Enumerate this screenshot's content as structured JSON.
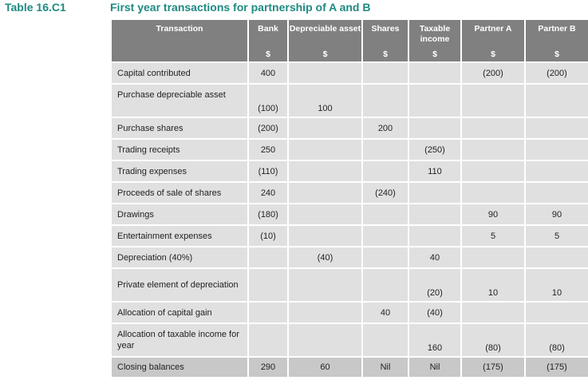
{
  "table": {
    "label": "Table 16.C1",
    "title": "First year transactions for partnership of A and B",
    "columns": [
      {
        "label": "Transaction",
        "unit": ""
      },
      {
        "label": "Bank",
        "unit": "$"
      },
      {
        "label": "Depreciable asset",
        "unit": "$"
      },
      {
        "label": "Shares",
        "unit": "$"
      },
      {
        "label": "Taxable income",
        "unit": "$"
      },
      {
        "label": "Partner A",
        "unit": "$"
      },
      {
        "label": "Partner B",
        "unit": "$"
      }
    ],
    "rows": [
      {
        "transaction": "Capital contributed",
        "bank": "400",
        "depreciable": "",
        "shares": "",
        "taxable": "",
        "partner_a": "(200)",
        "partner_b": "(200)"
      },
      {
        "transaction": "Purchase depreciable asset",
        "bank": "(100)",
        "depreciable": "100",
        "shares": "",
        "taxable": "",
        "partner_a": "",
        "partner_b": ""
      },
      {
        "transaction": "Purchase shares",
        "bank": "(200)",
        "depreciable": "",
        "shares": "200",
        "taxable": "",
        "partner_a": "",
        "partner_b": ""
      },
      {
        "transaction": "Trading receipts",
        "bank": "250",
        "depreciable": "",
        "shares": "",
        "taxable": "(250)",
        "partner_a": "",
        "partner_b": ""
      },
      {
        "transaction": "Trading expenses",
        "bank": "(110)",
        "depreciable": "",
        "shares": "",
        "taxable": "110",
        "partner_a": "",
        "partner_b": ""
      },
      {
        "transaction": "Proceeds of sale of shares",
        "bank": "240",
        "depreciable": "",
        "shares": "(240)",
        "taxable": "",
        "partner_a": "",
        "partner_b": ""
      },
      {
        "transaction": "Drawings",
        "bank": "(180)",
        "depreciable": "",
        "shares": "",
        "taxable": "",
        "partner_a": "90",
        "partner_b": "90"
      },
      {
        "transaction": "Entertainment expenses",
        "bank": "(10)",
        "depreciable": "",
        "shares": "",
        "taxable": "",
        "partner_a": "5",
        "partner_b": "5"
      },
      {
        "transaction": "Depreciation (40%)",
        "bank": "",
        "depreciable": "(40)",
        "shares": "",
        "taxable": "40",
        "partner_a": "",
        "partner_b": ""
      },
      {
        "transaction": "Private element of depreciation",
        "bank": "",
        "depreciable": "",
        "shares": "",
        "taxable": "(20)",
        "partner_a": "10",
        "partner_b": "10"
      },
      {
        "transaction": "Allocation of capital gain",
        "bank": "",
        "depreciable": "",
        "shares": "40",
        "taxable": "(40)",
        "partner_a": "",
        "partner_b": ""
      },
      {
        "transaction": "Allocation of taxable income for year",
        "bank": "",
        "depreciable": "",
        "shares": "",
        "taxable": "160",
        "partner_a": "(80)",
        "partner_b": "(80)"
      },
      {
        "transaction": "Closing balances",
        "bank": "290",
        "depreciable": "60",
        "shares": "Nil",
        "taxable": "Nil",
        "partner_a": "(175)",
        "partner_b": "(175)"
      }
    ]
  }
}
